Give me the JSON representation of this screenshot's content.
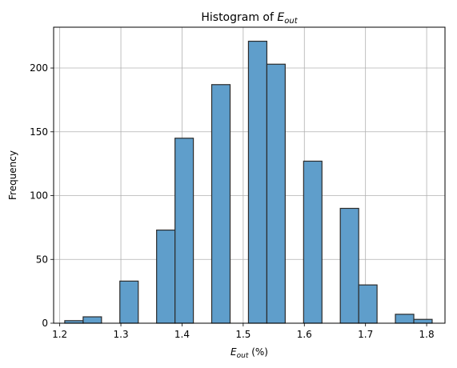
{
  "chart_data": {
    "type": "bar",
    "title": {
      "text": "Histogram of ",
      "symbol": "E",
      "subscript": "out"
    },
    "xlabel": {
      "symbol": "E",
      "subscript": "out",
      "suffix": " (%)"
    },
    "ylabel": "Frequency",
    "xlim": [
      1.19,
      1.83
    ],
    "ylim": [
      0,
      232
    ],
    "xticks": [
      "1.2",
      "1.3",
      "1.4",
      "1.5",
      "1.6",
      "1.7",
      "1.8"
    ],
    "xtick_values": [
      1.2,
      1.3,
      1.4,
      1.5,
      1.6,
      1.7,
      1.8
    ],
    "yticks": [
      "0",
      "50",
      "100",
      "150",
      "200"
    ],
    "ytick_values": [
      0,
      50,
      100,
      150,
      200
    ],
    "grid": true,
    "bar_color": "#5f9ecb",
    "edge_color": "#2b2b2b",
    "bins": [
      {
        "x0": 1.2082,
        "x1": 1.2383,
        "value": 2
      },
      {
        "x0": 1.2383,
        "x1": 1.2683,
        "value": 5
      },
      {
        "x0": 1.2983,
        "x1": 1.3284,
        "value": 33
      },
      {
        "x0": 1.3584,
        "x1": 1.3885,
        "value": 73
      },
      {
        "x0": 1.3885,
        "x1": 1.4185,
        "value": 145
      },
      {
        "x0": 1.4485,
        "x1": 1.4786,
        "value": 187
      },
      {
        "x0": 1.5086,
        "x1": 1.5387,
        "value": 221
      },
      {
        "x0": 1.5387,
        "x1": 1.5687,
        "value": 203
      },
      {
        "x0": 1.5988,
        "x1": 1.6288,
        "value": 127
      },
      {
        "x0": 1.6588,
        "x1": 1.6889,
        "value": 90
      },
      {
        "x0": 1.6889,
        "x1": 1.7189,
        "value": 30
      },
      {
        "x0": 1.7489,
        "x1": 1.779,
        "value": 7
      },
      {
        "x0": 1.779,
        "x1": 1.809,
        "value": 3
      }
    ]
  }
}
